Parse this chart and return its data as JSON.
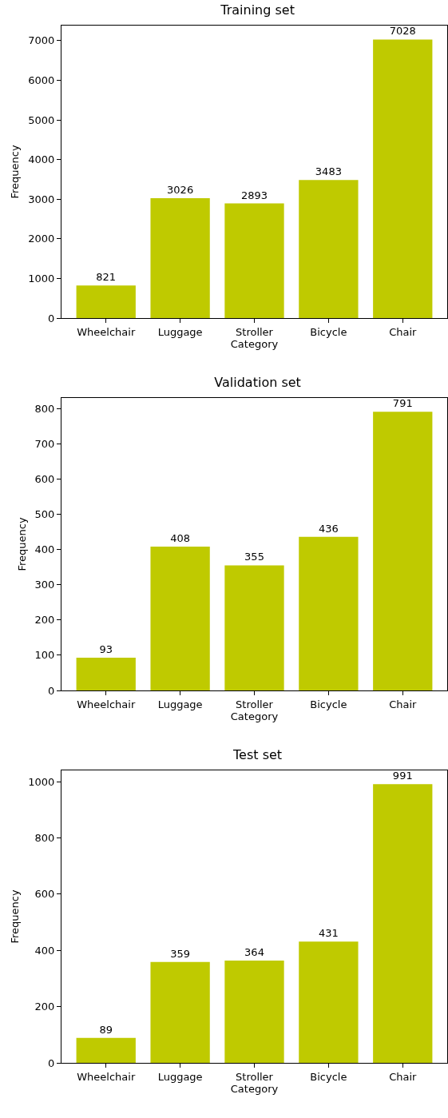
{
  "chart_data": [
    {
      "type": "bar",
      "title": "Training set",
      "xlabel": "Category",
      "ylabel": "Frequency",
      "categories": [
        "Wheelchair",
        "Luggage",
        "Stroller",
        "Bicycle",
        "Chair"
      ],
      "values": [
        821,
        3026,
        2893,
        3483,
        7028
      ],
      "color": "#bfca00",
      "ylim": [
        0,
        7379
      ],
      "yticks": [
        0,
        1000,
        2000,
        3000,
        4000,
        5000,
        6000,
        7000
      ],
      "data_labels": true,
      "grid": false,
      "legend": false
    },
    {
      "type": "bar",
      "title": "Validation set",
      "xlabel": "Category",
      "ylabel": "Frequency",
      "categories": [
        "Wheelchair",
        "Luggage",
        "Stroller",
        "Bicycle",
        "Chair"
      ],
      "values": [
        93,
        408,
        355,
        436,
        791
      ],
      "color": "#bfca00",
      "ylim": [
        0,
        830
      ],
      "yticks": [
        0,
        100,
        200,
        300,
        400,
        500,
        600,
        700,
        800
      ],
      "data_labels": true,
      "grid": false,
      "legend": false
    },
    {
      "type": "bar",
      "title": "Test set",
      "xlabel": "Category",
      "ylabel": "Frequency",
      "categories": [
        "Wheelchair",
        "Luggage",
        "Stroller",
        "Bicycle",
        "Chair"
      ],
      "values": [
        89,
        359,
        364,
        431,
        991
      ],
      "color": "#bfca00",
      "ylim": [
        0,
        1040
      ],
      "yticks": [
        0,
        200,
        400,
        600,
        800,
        1000
      ],
      "data_labels": true,
      "grid": false,
      "legend": false
    }
  ]
}
